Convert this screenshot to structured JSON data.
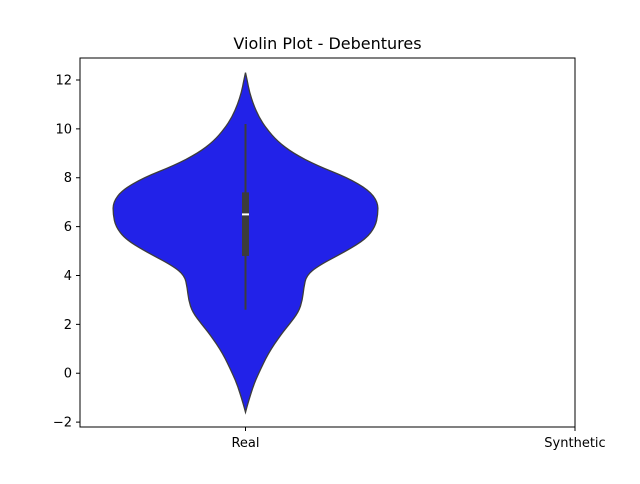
{
  "chart_data": {
    "type": "violin",
    "title": "Violin Plot - Debentures",
    "xlabel": "",
    "ylabel": "",
    "categories": [
      "Real",
      "Synthetic"
    ],
    "ylim": [
      -2.2,
      12.9
    ],
    "yticks": [
      -2,
      0,
      2,
      4,
      6,
      8,
      10,
      12
    ],
    "grid": false,
    "series": [
      {
        "name": "Real",
        "color": "#2222e8",
        "edge_color": "#3c3c3c",
        "kde_range": [
          -1.6,
          12.3
        ],
        "density_profile": [
          {
            "y": -1.6,
            "w": 0.0
          },
          {
            "y": -1.2,
            "w": 0.02
          },
          {
            "y": -0.5,
            "w": 0.06
          },
          {
            "y": 0.0,
            "w": 0.1
          },
          {
            "y": 0.8,
            "w": 0.17
          },
          {
            "y": 1.6,
            "w": 0.27
          },
          {
            "y": 2.0,
            "w": 0.33
          },
          {
            "y": 2.5,
            "w": 0.4
          },
          {
            "y": 3.0,
            "w": 0.43
          },
          {
            "y": 3.5,
            "w": 0.44
          },
          {
            "y": 4.0,
            "w": 0.46
          },
          {
            "y": 4.4,
            "w": 0.55
          },
          {
            "y": 5.0,
            "w": 0.76
          },
          {
            "y": 5.5,
            "w": 0.91
          },
          {
            "y": 6.0,
            "w": 0.98
          },
          {
            "y": 6.5,
            "w": 1.0
          },
          {
            "y": 7.0,
            "w": 1.0
          },
          {
            "y": 7.5,
            "w": 0.93
          },
          {
            "y": 8.0,
            "w": 0.77
          },
          {
            "y": 8.5,
            "w": 0.54
          },
          {
            "y": 9.0,
            "w": 0.36
          },
          {
            "y": 9.5,
            "w": 0.24
          },
          {
            "y": 10.0,
            "w": 0.16
          },
          {
            "y": 10.5,
            "w": 0.1
          },
          {
            "y": 11.0,
            "w": 0.06
          },
          {
            "y": 11.5,
            "w": 0.03
          },
          {
            "y": 12.0,
            "w": 0.012
          },
          {
            "y": 12.3,
            "w": 0.0
          }
        ],
        "whisker_low": 2.6,
        "q1": 4.8,
        "median": 6.5,
        "q3": 7.4,
        "whisker_high": 10.2
      }
    ]
  }
}
